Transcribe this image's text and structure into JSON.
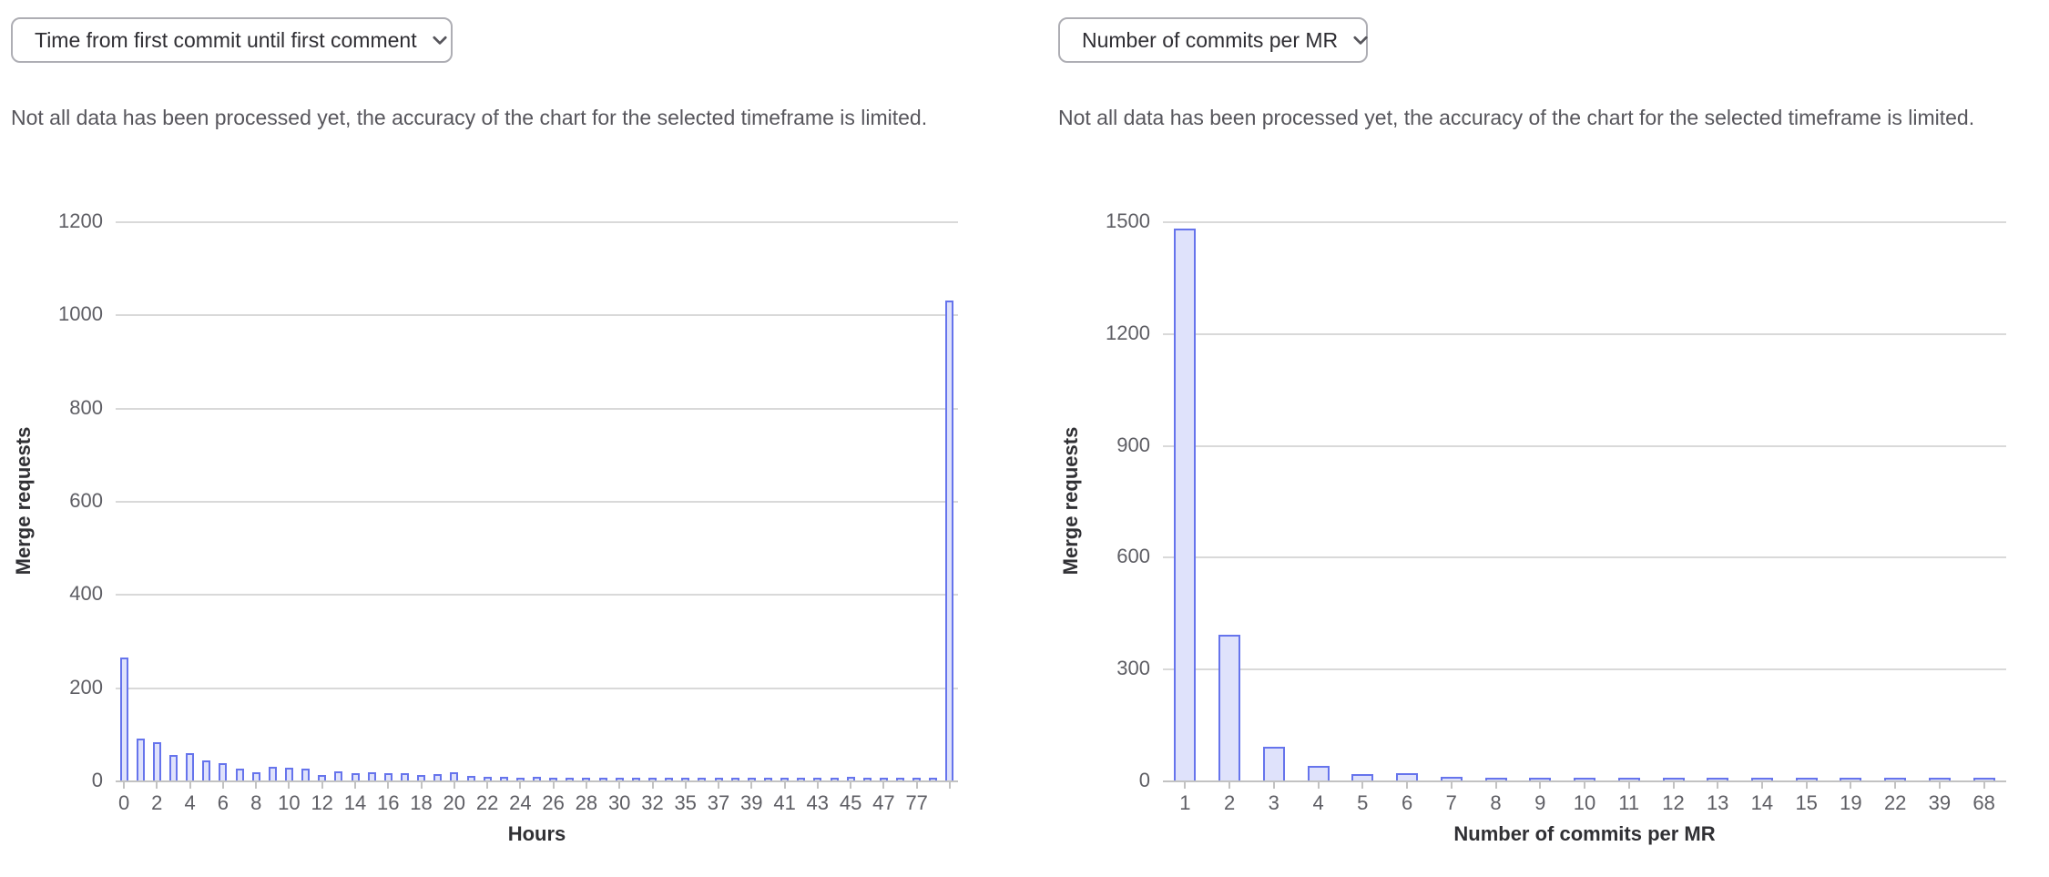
{
  "colors": {
    "background": "#ffffff",
    "bar_fill": "#dfe2fb",
    "bar_border": "#6674ec",
    "gridline": "#d9d9d9",
    "axis_line": "#c2c2c2",
    "tick_label": "#5e5e64",
    "axis_title": "#303034",
    "warning_text": "#57565c",
    "dropdown_text": "#2f2e33",
    "dropdown_border": "#aeaeb4",
    "chevron_icon": "#56555b"
  },
  "panels": [
    {
      "dropdown": {
        "label": "Time from first commit until first comment",
        "icon": "chevron-down-icon"
      },
      "warning": "Not all data has been processed yet, the accuracy of the chart for the selected timeframe is limited."
    },
    {
      "dropdown": {
        "label": "Number of commits per MR",
        "icon": "chevron-down-icon"
      },
      "warning": "Not all data has been processed yet, the accuracy of the chart for the selected timeframe is limited."
    }
  ],
  "chart_data": [
    {
      "type": "bar",
      "title": "Time from first commit until first comment",
      "xlabel": "Hours",
      "ylabel": "Merge requests",
      "ylim": [
        0,
        1200
      ],
      "yticks": [
        0,
        200,
        400,
        600,
        800,
        1000,
        1200
      ],
      "grid": true,
      "legend": "none",
      "x_labels_shown": [
        "0",
        "2",
        "4",
        "6",
        "8",
        "10",
        "12",
        "14",
        "16",
        "18",
        "20",
        "22",
        "24",
        "26",
        "28",
        "30",
        "32",
        "35",
        "37",
        "39",
        "41",
        "43",
        "45",
        "47",
        "77"
      ],
      "categories": [
        "0",
        "",
        "2",
        "",
        "4",
        "",
        "6",
        "",
        "8",
        "",
        "10",
        "",
        "12",
        "",
        "14",
        "",
        "16",
        "",
        "18",
        "",
        "20",
        "",
        "22",
        "",
        "24",
        "",
        "26",
        "",
        "28",
        "",
        "30",
        "",
        "32",
        "",
        "35",
        "",
        "37",
        "",
        "39",
        "",
        "41",
        "",
        "43",
        "",
        "45",
        "",
        "47",
        "",
        "77",
        "",
        ""
      ],
      "values": [
        263,
        90,
        82,
        55,
        58,
        44,
        37,
        26,
        17,
        29,
        28,
        25,
        12,
        19,
        15,
        17,
        15,
        16,
        12,
        13,
        18,
        9,
        8,
        8,
        6,
        7,
        4,
        5,
        5,
        4,
        5,
        4,
        5,
        3,
        4,
        3,
        4,
        3,
        4,
        5,
        3,
        3,
        6,
        3,
        8,
        4,
        4,
        4,
        5,
        4,
        1030
      ],
      "force_end_tick": true
    },
    {
      "type": "bar",
      "title": "Number of commits per MR",
      "xlabel": "Number of commits per MR",
      "ylabel": "Merge requests",
      "ylim": [
        0,
        1500
      ],
      "yticks": [
        0,
        300,
        600,
        900,
        1200,
        1500
      ],
      "grid": true,
      "legend": "none",
      "categories": [
        "1",
        "2",
        "3",
        "4",
        "5",
        "6",
        "7",
        "8",
        "9",
        "10",
        "11",
        "12",
        "13",
        "14",
        "15",
        "19",
        "22",
        "39",
        "68"
      ],
      "values": [
        1480,
        390,
        90,
        38,
        18,
        19,
        10,
        5,
        4,
        4,
        4,
        4,
        4,
        4,
        4,
        4,
        4,
        4,
        4
      ]
    }
  ]
}
